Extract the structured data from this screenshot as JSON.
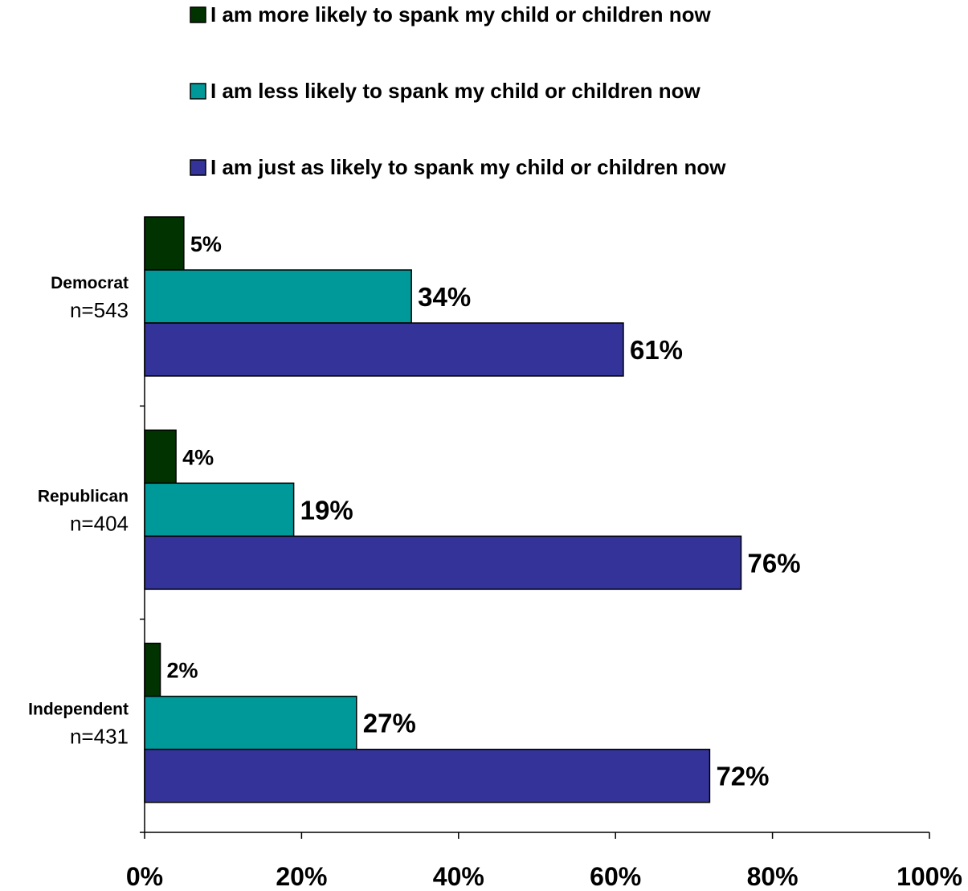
{
  "chart_data": {
    "type": "bar",
    "orientation": "horizontal",
    "categories": [
      {
        "label": "Democrat",
        "n": "n=543"
      },
      {
        "label": "Republican",
        "n": "n=404"
      },
      {
        "label": "Independent",
        "n": "n=431"
      }
    ],
    "series": [
      {
        "name": "I am more likely to spank my child or children now",
        "color": "#003300",
        "values": [
          5,
          4,
          2
        ],
        "labels": [
          "5%",
          "4%",
          "2%"
        ]
      },
      {
        "name": "I am less likely to spank my child or children now",
        "color": "#009999",
        "values": [
          34,
          19,
          27
        ],
        "labels": [
          "34%",
          "19%",
          "27%"
        ]
      },
      {
        "name": "I am just as likely to spank my child or children now",
        "color": "#333399",
        "values": [
          61,
          76,
          72
        ],
        "labels": [
          "61%",
          "76%",
          "72%"
        ]
      }
    ],
    "xlim": [
      0,
      100
    ],
    "xticks": [
      0,
      20,
      40,
      60,
      80,
      100
    ],
    "xtick_labels": [
      "0%",
      "20%",
      "40%",
      "60%",
      "80%",
      "100%"
    ],
    "legend_position": "top",
    "grid": false
  }
}
